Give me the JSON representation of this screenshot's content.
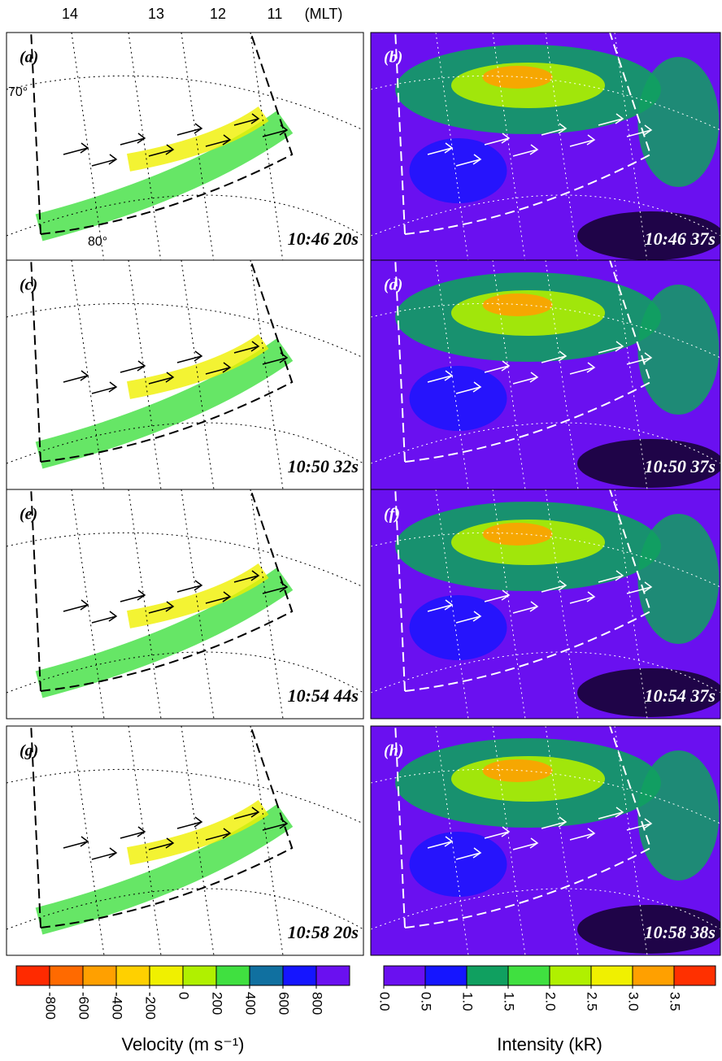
{
  "mlt_labels": [
    "14",
    "13",
    "12",
    "11",
    "(MLT)"
  ],
  "lat_labels": [
    "70°",
    "80°"
  ],
  "panels": [
    {
      "label": "(a)",
      "time": "10:46 20s",
      "kind": "velocity"
    },
    {
      "label": "(b)",
      "time": "10:46 37s",
      "kind": "intensity"
    },
    {
      "label": "(c)",
      "time": "10:50 32s",
      "kind": "velocity"
    },
    {
      "label": "(d)",
      "time": "10:50 37s",
      "kind": "intensity"
    },
    {
      "label": "(e)",
      "time": "10:54 44s",
      "kind": "velocity"
    },
    {
      "label": "(f)",
      "time": "10:54 37s",
      "kind": "intensity"
    },
    {
      "label": "(g)",
      "time": "10:58 20s",
      "kind": "velocity"
    },
    {
      "label": "(h)",
      "time": "10:58 38s",
      "kind": "intensity"
    }
  ],
  "velocity_colorbar": {
    "title": "Velocity (m s⁻¹)",
    "lim": [
      -1000,
      1000
    ],
    "ticks": [
      -800,
      -600,
      -400,
      -200,
      0,
      200,
      400,
      600,
      800
    ],
    "colors": [
      "#ff2a00",
      "#ff6a00",
      "#ffa000",
      "#ffd000",
      "#f0f000",
      "#b0f000",
      "#40e040",
      "#1070a0",
      "#1515ff",
      "#6a10f0"
    ]
  },
  "intensity_colorbar": {
    "title": "Intensity (kR)",
    "lim": [
      0,
      4
    ],
    "ticks": [
      {
        "value": 0,
        "label": "0.0"
      },
      {
        "value": 0.5,
        "label": "0.5"
      },
      {
        "value": 1,
        "label": "1.0"
      },
      {
        "value": 1.5,
        "label": "1.5"
      },
      {
        "value": 2,
        "label": "2.0"
      },
      {
        "value": 2.5,
        "label": "2.5"
      },
      {
        "value": 3,
        "label": "3.0"
      },
      {
        "value": 3.5,
        "label": "3.5"
      }
    ],
    "colors": [
      "#6a10f0",
      "#1515ff",
      "#10a060",
      "#40e040",
      "#b0f000",
      "#f0f000",
      "#ffa000",
      "#ff3000"
    ]
  }
}
